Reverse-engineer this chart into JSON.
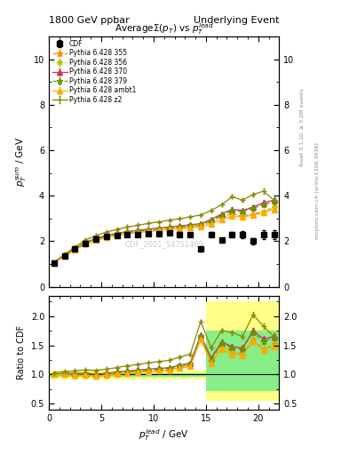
{
  "title_left": "1800 GeV ppbar",
  "title_right": "Underlying Event",
  "plot_title": "Average$\\Sigma(p_T)$ vs $p_T^{lead}$",
  "ylabel_main": "$p_T^{sum}$ / GeV",
  "ylabel_ratio": "Ratio to CDF",
  "xlabel": "$p_T^{lead}$ / GeV",
  "watermark": "CDF_2001_S4751469",
  "right_label1": "Rivet 3.1.10, ≥ 3.2M events",
  "right_label2": "mcplots.cern.ch [arXiv:1306.3436]",
  "xlim": [
    0,
    22
  ],
  "ylim_main": [
    0,
    11
  ],
  "ylim_ratio": [
    0.4,
    2.35
  ],
  "yticks_main": [
    0,
    2,
    4,
    6,
    8,
    10
  ],
  "yticks_ratio": [
    0.5,
    1.0,
    1.5,
    2.0
  ],
  "cdf_x": [
    0.5,
    1.5,
    2.5,
    3.5,
    4.5,
    5.5,
    6.5,
    7.5,
    8.5,
    9.5,
    10.5,
    11.5,
    12.5,
    13.5,
    14.5,
    15.5,
    16.5,
    17.5,
    18.5,
    19.5,
    20.5,
    21.5
  ],
  "cdf_y": [
    1.05,
    1.35,
    1.65,
    1.9,
    2.1,
    2.2,
    2.25,
    2.28,
    2.3,
    2.32,
    2.33,
    2.35,
    2.3,
    2.28,
    1.65,
    2.3,
    2.05,
    2.3,
    2.3,
    2.0,
    2.3,
    2.3
  ],
  "cdf_yerr": [
    0.05,
    0.06,
    0.06,
    0.06,
    0.06,
    0.07,
    0.07,
    0.07,
    0.07,
    0.08,
    0.08,
    0.08,
    0.09,
    0.09,
    0.09,
    0.1,
    0.1,
    0.12,
    0.15,
    0.15,
    0.2,
    0.2
  ],
  "series": [
    {
      "label": "Pythia 6.428 355",
      "color": "#ff8c00",
      "linestyle": "--",
      "marker": "*",
      "markersize": 5,
      "x": [
        0.5,
        1.5,
        2.5,
        3.5,
        4.5,
        5.5,
        6.5,
        7.5,
        8.5,
        9.5,
        10.5,
        11.5,
        12.5,
        13.5,
        14.5,
        15.5,
        16.5,
        17.5,
        18.5,
        19.5,
        20.5,
        21.5
      ],
      "y": [
        1.05,
        1.35,
        1.62,
        1.88,
        2.05,
        2.18,
        2.28,
        2.35,
        2.4,
        2.45,
        2.5,
        2.55,
        2.6,
        2.65,
        2.7,
        2.85,
        3.1,
        3.2,
        3.1,
        3.2,
        3.3,
        3.5
      ],
      "yerr": [
        0.02,
        0.03,
        0.03,
        0.03,
        0.03,
        0.04,
        0.04,
        0.04,
        0.04,
        0.04,
        0.04,
        0.04,
        0.05,
        0.05,
        0.05,
        0.06,
        0.07,
        0.08,
        0.08,
        0.09,
        0.1,
        0.12
      ]
    },
    {
      "label": "Pythia 6.428 356",
      "color": "#aacc00",
      "linestyle": ":",
      "marker": "s",
      "markersize": 3,
      "x": [
        0.5,
        1.5,
        2.5,
        3.5,
        4.5,
        5.5,
        6.5,
        7.5,
        8.5,
        9.5,
        10.5,
        11.5,
        12.5,
        13.5,
        14.5,
        15.5,
        16.5,
        17.5,
        18.5,
        19.5,
        20.5,
        21.5
      ],
      "y": [
        1.05,
        1.33,
        1.6,
        1.85,
        2.02,
        2.15,
        2.25,
        2.32,
        2.38,
        2.43,
        2.48,
        2.53,
        2.58,
        2.63,
        2.68,
        2.8,
        3.05,
        3.15,
        3.05,
        3.15,
        3.25,
        3.45
      ],
      "yerr": [
        0.02,
        0.03,
        0.03,
        0.03,
        0.03,
        0.04,
        0.04,
        0.04,
        0.04,
        0.04,
        0.04,
        0.04,
        0.05,
        0.05,
        0.05,
        0.06,
        0.07,
        0.08,
        0.08,
        0.09,
        0.1,
        0.12
      ]
    },
    {
      "label": "Pythia 6.428 370",
      "color": "#cc3366",
      "linestyle": "-",
      "marker": "^",
      "markersize": 4,
      "x": [
        0.5,
        1.5,
        2.5,
        3.5,
        4.5,
        5.5,
        6.5,
        7.5,
        8.5,
        9.5,
        10.5,
        11.5,
        12.5,
        13.5,
        14.5,
        15.5,
        16.5,
        17.5,
        18.5,
        19.5,
        20.5,
        21.5
      ],
      "y": [
        1.05,
        1.38,
        1.68,
        1.95,
        2.12,
        2.25,
        2.35,
        2.42,
        2.48,
        2.53,
        2.58,
        2.62,
        2.67,
        2.72,
        2.77,
        2.95,
        3.2,
        3.4,
        3.35,
        3.5,
        3.7,
        3.8
      ],
      "yerr": [
        0.02,
        0.03,
        0.03,
        0.03,
        0.03,
        0.04,
        0.04,
        0.04,
        0.04,
        0.04,
        0.04,
        0.04,
        0.05,
        0.05,
        0.05,
        0.06,
        0.07,
        0.08,
        0.08,
        0.09,
        0.1,
        0.12
      ]
    },
    {
      "label": "Pythia 6.428 379",
      "color": "#669900",
      "linestyle": "--",
      "marker": "*",
      "markersize": 5,
      "x": [
        0.5,
        1.5,
        2.5,
        3.5,
        4.5,
        5.5,
        6.5,
        7.5,
        8.5,
        9.5,
        10.5,
        11.5,
        12.5,
        13.5,
        14.5,
        15.5,
        16.5,
        17.5,
        18.5,
        19.5,
        20.5,
        21.5
      ],
      "y": [
        1.05,
        1.37,
        1.67,
        1.93,
        2.1,
        2.22,
        2.32,
        2.39,
        2.45,
        2.5,
        2.55,
        2.6,
        2.65,
        2.7,
        2.75,
        2.9,
        3.15,
        3.35,
        3.3,
        3.45,
        3.6,
        3.75
      ],
      "yerr": [
        0.02,
        0.03,
        0.03,
        0.03,
        0.03,
        0.04,
        0.04,
        0.04,
        0.04,
        0.04,
        0.04,
        0.04,
        0.05,
        0.05,
        0.05,
        0.06,
        0.07,
        0.08,
        0.08,
        0.09,
        0.1,
        0.12
      ]
    },
    {
      "label": "Pythia 6.428 ambt1",
      "color": "#ffaa00",
      "linestyle": "-",
      "marker": "^",
      "markersize": 4,
      "x": [
        0.5,
        1.5,
        2.5,
        3.5,
        4.5,
        5.5,
        6.5,
        7.5,
        8.5,
        9.5,
        10.5,
        11.5,
        12.5,
        13.5,
        14.5,
        15.5,
        16.5,
        17.5,
        18.5,
        19.5,
        20.5,
        21.5
      ],
      "y": [
        1.05,
        1.35,
        1.63,
        1.88,
        2.04,
        2.17,
        2.26,
        2.33,
        2.38,
        2.43,
        2.47,
        2.51,
        2.55,
        2.59,
        2.63,
        2.75,
        2.95,
        3.1,
        3.05,
        3.15,
        3.25,
        3.4
      ],
      "yerr": [
        0.02,
        0.03,
        0.03,
        0.03,
        0.03,
        0.04,
        0.04,
        0.04,
        0.04,
        0.04,
        0.04,
        0.04,
        0.05,
        0.05,
        0.05,
        0.06,
        0.07,
        0.08,
        0.08,
        0.09,
        0.1,
        0.12
      ]
    },
    {
      "label": "Pythia 6.428 z2",
      "color": "#888800",
      "linestyle": "-",
      "marker": "+",
      "markersize": 5,
      "x": [
        0.5,
        1.5,
        2.5,
        3.5,
        4.5,
        5.5,
        6.5,
        7.5,
        8.5,
        9.5,
        10.5,
        11.5,
        12.5,
        13.5,
        14.5,
        15.5,
        16.5,
        17.5,
        18.5,
        19.5,
        20.5,
        21.5
      ],
      "y": [
        1.08,
        1.42,
        1.75,
        2.05,
        2.25,
        2.4,
        2.52,
        2.62,
        2.7,
        2.78,
        2.85,
        2.92,
        2.99,
        3.07,
        3.15,
        3.35,
        3.6,
        3.95,
        3.8,
        4.05,
        4.2,
        3.8
      ],
      "yerr": [
        0.02,
        0.03,
        0.03,
        0.03,
        0.03,
        0.04,
        0.04,
        0.04,
        0.04,
        0.04,
        0.04,
        0.04,
        0.05,
        0.05,
        0.05,
        0.06,
        0.07,
        0.08,
        0.08,
        0.09,
        0.1,
        0.12
      ]
    }
  ],
  "band_edges": [
    0,
    1,
    2,
    3,
    4,
    5,
    6,
    7,
    8,
    9,
    10,
    11,
    12,
    13,
    14,
    15,
    16,
    17,
    18,
    19,
    20,
    21,
    22
  ],
  "band_yellow_low": [
    0.92,
    0.92,
    0.92,
    0.92,
    0.92,
    0.92,
    0.92,
    0.92,
    0.92,
    0.92,
    0.92,
    0.92,
    0.92,
    0.92,
    0.92,
    0.55,
    0.55,
    0.55,
    0.55,
    0.55,
    0.55,
    0.55
  ],
  "band_yellow_high": [
    1.06,
    1.06,
    1.06,
    1.06,
    1.06,
    1.06,
    1.06,
    1.06,
    1.06,
    1.06,
    1.06,
    1.06,
    1.06,
    1.06,
    1.06,
    2.25,
    2.25,
    2.25,
    2.25,
    2.25,
    2.25,
    2.25
  ],
  "band_green_low": [
    0.96,
    0.96,
    0.96,
    0.96,
    0.96,
    0.96,
    0.96,
    0.96,
    0.96,
    0.96,
    0.96,
    0.96,
    0.96,
    0.96,
    0.96,
    0.72,
    0.72,
    0.72,
    0.72,
    0.72,
    0.72,
    0.72
  ],
  "band_green_high": [
    1.02,
    1.02,
    1.02,
    1.02,
    1.02,
    1.02,
    1.02,
    1.02,
    1.02,
    1.02,
    1.02,
    1.02,
    1.02,
    1.02,
    1.02,
    1.75,
    1.75,
    1.75,
    1.75,
    1.75,
    1.75,
    1.75
  ]
}
